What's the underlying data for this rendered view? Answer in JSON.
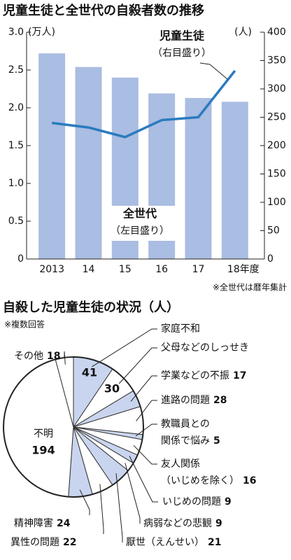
{
  "chart_data": [
    {
      "type": "bar",
      "title": "児童生徒と全世代の自殺者数の推移",
      "y_unit": "(万人)",
      "y2_unit": "(人)",
      "categories": [
        "2013",
        "14",
        "15",
        "16",
        "17",
        "18年度"
      ],
      "series": [
        {
          "name": "全世代",
          "note": "（左目盛り）",
          "color": "#aabde2",
          "values": [
            2.72,
            2.54,
            2.4,
            2.19,
            2.13,
            2.08
          ]
        },
        {
          "name": "児童生徒",
          "note": "（右目盛り）",
          "type": "line",
          "axis": "y2",
          "color": "#2a7bbf",
          "values": [
            240,
            232,
            215,
            245,
            250,
            332
          ]
        }
      ],
      "ylim": [
        0,
        3
      ],
      "yticks": [
        0,
        0.5,
        {
          "value": 1,
          "label": "1.0"
        },
        1.5,
        {
          "value": 2,
          "label": "2.0"
        },
        2.5,
        {
          "value": 3,
          "label": "3.0"
        }
      ],
      "y2lim": [
        0,
        400
      ],
      "y2ticks": [
        0,
        50,
        100,
        150,
        200,
        250,
        300,
        350,
        400
      ],
      "footnote": "※全世代は暦年集計"
    },
    {
      "type": "pie",
      "title": "自殺した児童生徒の状況（人）",
      "subtitle": "※複数回答",
      "categories": [
        "家庭不和",
        "父母などのしっせき",
        "学業などの不振",
        "進路の問題",
        "教職員との関係で悩み",
        "友人関係（いじめを除く）",
        "いじめの問題",
        "病弱などの悲観",
        "厭世（えんせい）",
        "異性の問題",
        "精神障害",
        "不明",
        "その他"
      ],
      "values": [
        41,
        30,
        17,
        28,
        5,
        16,
        9,
        9,
        21,
        22,
        24,
        194,
        18
      ],
      "colors": [
        "#c9d5ee",
        "#ffffff",
        "#c9d5ee",
        "#ffffff",
        "#c9d5ee",
        "#ffffff",
        "#c9d5ee",
        "#ffffff",
        "#c9d5ee",
        "#ffffff",
        "#c9d5ee",
        "#ffffff",
        "#ffffff"
      ]
    }
  ]
}
